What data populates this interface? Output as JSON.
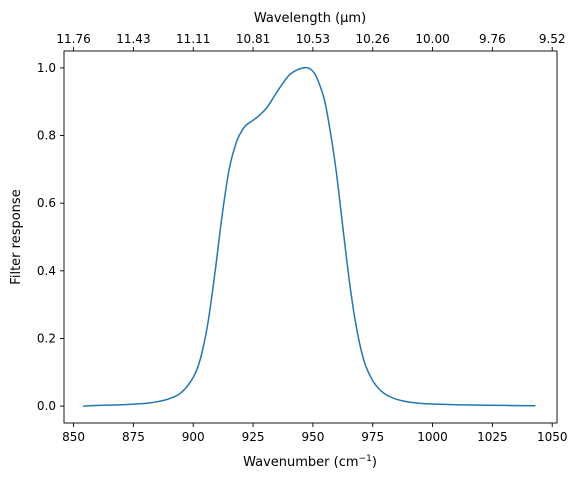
{
  "chart_data": {
    "type": "line",
    "title": "",
    "xlabel": "Wavenumber (cm",
    "xlabel_sup": "−1",
    "xlabel_close": ")",
    "ylabel": "Filter response",
    "top_axis_label": "Wavelength (μm)",
    "xlim": [
      846,
      1052
    ],
    "ylim": [
      -0.05,
      1.05
    ],
    "x_ticks": [
      850,
      875,
      900,
      925,
      950,
      975,
      1000,
      1025,
      1050
    ],
    "y_ticks": [
      0.0,
      0.2,
      0.4,
      0.6,
      0.8,
      1.0
    ],
    "y_tick_labels": [
      "0.0",
      "0.2",
      "0.4",
      "0.6",
      "0.8",
      "1.0"
    ],
    "top_ticks": [
      {
        "wavenumber": 850,
        "label": "11.76"
      },
      {
        "wavenumber": 875,
        "label": "11.43"
      },
      {
        "wavenumber": 900,
        "label": "11.11"
      },
      {
        "wavenumber": 925,
        "label": "10.81"
      },
      {
        "wavenumber": 950,
        "label": "10.53"
      },
      {
        "wavenumber": 975,
        "label": "10.26"
      },
      {
        "wavenumber": 1000,
        "label": "10.00"
      },
      {
        "wavenumber": 1025,
        "label": "9.76"
      },
      {
        "wavenumber": 1050,
        "label": "9.52"
      }
    ],
    "grid": false,
    "series": [
      {
        "color": "#1f77b4",
        "x": [
          854,
          860,
          870,
          880,
          885,
          890,
          895,
          900,
          903,
          906,
          909,
          912,
          915,
          918,
          920,
          922,
          925,
          928,
          931,
          934,
          937,
          940,
          943,
          946,
          948,
          950,
          952,
          955,
          958,
          960,
          962,
          964,
          966,
          968,
          970,
          972,
          975,
          978,
          981,
          985,
          990,
          995,
          1000,
          1010,
          1020,
          1030,
          1043
        ],
        "y": [
          0.0,
          0.002,
          0.004,
          0.008,
          0.013,
          0.022,
          0.04,
          0.085,
          0.14,
          0.24,
          0.39,
          0.56,
          0.7,
          0.78,
          0.81,
          0.83,
          0.845,
          0.862,
          0.885,
          0.918,
          0.95,
          0.978,
          0.993,
          1.0,
          1.0,
          0.99,
          0.965,
          0.9,
          0.78,
          0.68,
          0.56,
          0.44,
          0.33,
          0.24,
          0.17,
          0.12,
          0.075,
          0.048,
          0.032,
          0.02,
          0.012,
          0.008,
          0.006,
          0.004,
          0.003,
          0.002,
          0.001
        ]
      }
    ]
  }
}
